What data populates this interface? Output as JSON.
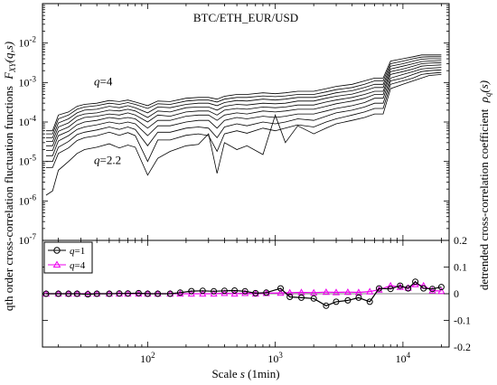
{
  "chart_data": [
    {
      "type": "line",
      "title": "BTC/ETH_EUR/USD",
      "xscale": "log",
      "yscale": "log",
      "xlim": [
        15,
        23000
      ],
      "ylim": [
        1e-07,
        0.1
      ],
      "ylabel": "qth order cross-correlation fluctuation functions",
      "ylabel_math": {
        "main": "F",
        "sub": "XY",
        "args": "(q,s)"
      },
      "y_ticks": [
        {
          "value": 1e-07,
          "base": "10",
          "exp": "-7"
        },
        {
          "value": 1e-06,
          "base": "10",
          "exp": "-6"
        },
        {
          "value": 1e-05,
          "base": "10",
          "exp": "-5"
        },
        {
          "value": 0.0001,
          "base": "10",
          "exp": "-4"
        },
        {
          "value": 0.001,
          "base": "10",
          "exp": "-3"
        },
        {
          "value": 0.01,
          "base": "10",
          "exp": "-2"
        }
      ],
      "annotations": [
        {
          "text_q": "q",
          "text_rest": "=4",
          "x": 38,
          "y": 0.00085
        },
        {
          "text_q": "q",
          "text_rest": "=2.2",
          "x": 38,
          "y": 8.5e-06
        }
      ],
      "x": [
        16,
        18,
        20,
        24,
        28,
        32,
        40,
        50,
        60,
        70,
        80,
        100,
        120,
        150,
        200,
        250,
        300,
        350,
        400,
        500,
        600,
        800,
        1000,
        1200,
        1500,
        2000,
        2500,
        3000,
        4000,
        5000,
        6000,
        7000,
        8000,
        10000,
        12000,
        14000,
        16000,
        20000
      ],
      "series": [
        {
          "values": [
            6e-05,
            6e-05,
            0.00015,
            0.00018,
            0.00025,
            0.00028,
            0.0003,
            0.00035,
            0.00033,
            0.00036,
            0.00032,
            0.00026,
            0.00034,
            0.00033,
            0.0004,
            0.00042,
            0.00042,
            0.00038,
            0.00045,
            0.0005,
            0.0005,
            0.00055,
            0.00052,
            0.00055,
            0.0006,
            0.0006,
            0.0007,
            0.0008,
            0.0009,
            0.0011,
            0.0013,
            0.0013,
            0.0035,
            0.004,
            0.0045,
            0.005,
            0.005,
            0.005
          ]
        },
        {
          "values": [
            5e-05,
            5e-05,
            0.00012,
            0.00015,
            0.00021,
            0.00024,
            0.00026,
            0.0003,
            0.00028,
            0.00031,
            0.00028,
            0.00022,
            0.00029,
            0.00028,
            0.00034,
            0.00036,
            0.00036,
            0.00032,
            0.00038,
            0.00042,
            0.00042,
            0.00046,
            0.00044,
            0.00046,
            0.0005,
            0.0005,
            0.00058,
            0.00066,
            0.00075,
            0.0009,
            0.0011,
            0.0011,
            0.003,
            0.0035,
            0.004,
            0.0044,
            0.0045,
            0.0045
          ]
        },
        {
          "values": [
            4e-05,
            4e-05,
            9.5e-05,
            0.00012,
            0.00017,
            0.0002,
            0.00021,
            0.00025,
            0.00023,
            0.00026,
            0.00023,
            0.00017,
            0.00024,
            0.00023,
            0.00028,
            0.0003,
            0.0003,
            0.00026,
            0.00031,
            0.00035,
            0.00034,
            0.00038,
            0.00036,
            0.00038,
            0.00042,
            0.00042,
            0.00048,
            0.00055,
            0.00062,
            0.00075,
            0.0009,
            0.0009,
            0.0026,
            0.003,
            0.0035,
            0.0039,
            0.004,
            0.004
          ]
        },
        {
          "values": [
            3.2e-05,
            3.2e-05,
            7.5e-05,
            9.5e-05,
            0.00014,
            0.00016,
            0.00017,
            0.0002,
            0.00019,
            0.00021,
            0.00019,
            0.00013,
            0.00019,
            0.00018,
            0.00023,
            0.00024,
            0.00024,
            0.0002,
            0.00025,
            0.00028,
            0.00027,
            0.0003,
            0.00029,
            0.0003,
            0.00034,
            0.00034,
            0.0004,
            0.00045,
            0.00051,
            0.00062,
            0.00075,
            0.00075,
            0.0022,
            0.0026,
            0.003,
            0.0034,
            0.0035,
            0.0036
          ]
        },
        {
          "values": [
            2.5e-05,
            2.5e-05,
            5.8e-05,
            7.5e-05,
            0.00011,
            0.00013,
            0.00014,
            0.00016,
            0.00015,
            0.00017,
            0.00015,
            0.0001,
            0.00015,
            0.00014,
            0.00018,
            0.00019,
            0.00019,
            0.00015,
            0.0002,
            0.00022,
            0.00021,
            0.00024,
            0.00023,
            0.00024,
            0.00027,
            0.00027,
            0.00032,
            0.00036,
            0.00042,
            0.0005,
            0.0006,
            0.0006,
            0.0019,
            0.0022,
            0.0026,
            0.003,
            0.0031,
            0.0032
          ]
        },
        {
          "values": [
            1.9e-05,
            1.9e-05,
            4.5e-05,
            5.8e-05,
            8.5e-05,
            0.0001,
            0.00011,
            0.00013,
            0.00012,
            0.00013,
            0.00012,
            7e-05,
            0.00011,
            0.00011,
            0.00014,
            0.00015,
            0.00015,
            0.00011,
            0.00015,
            0.00017,
            0.00016,
            0.00019,
            0.00018,
            0.00019,
            0.00021,
            0.00021,
            0.00025,
            0.00029,
            0.00034,
            0.0004,
            0.0005,
            0.0005,
            0.0016,
            0.0019,
            0.0022,
            0.0026,
            0.0027,
            0.0028
          ]
        },
        {
          "values": [
            1.4e-05,
            1.4e-05,
            3.3e-05,
            4.5e-05,
            6.5e-05,
            7.5e-05,
            8.5e-05,
            0.0001,
            9e-05,
            0.0001,
            9e-05,
            4.5e-05,
            8e-05,
            8e-05,
            0.0001,
            0.00011,
            0.00011,
            7e-05,
            0.00011,
            0.00013,
            0.00012,
            0.00014,
            0.00013,
            0.00014,
            0.00016,
            0.00016,
            0.00019,
            0.00022,
            0.00026,
            0.00031,
            0.0004,
            0.0004,
            0.0013,
            0.0016,
            0.0019,
            0.0022,
            0.0023,
            0.0024
          ]
        },
        {
          "values": [
            1e-05,
            1e-05,
            2.3e-05,
            3.2e-05,
            4.8e-05,
            5.5e-05,
            6.3e-05,
            7.5e-05,
            6.5e-05,
            7.5e-05,
            6.5e-05,
            2.5e-05,
            5.5e-05,
            5.5e-05,
            7e-05,
            7.5e-05,
            7e-05,
            4e-05,
            7.5e-05,
            9e-05,
            8e-05,
            0.0001,
            9e-05,
            0.0001,
            0.00012,
            0.00011,
            0.00014,
            0.00017,
            0.0002,
            0.00024,
            0.0003,
            0.0003,
            0.0011,
            0.0013,
            0.0016,
            0.0019,
            0.002,
            0.0021
          ]
        },
        {
          "values": [
            7e-06,
            7e-06,
            1.6e-05,
            2.2e-05,
            3.4e-05,
            4e-05,
            4.5e-05,
            5.5e-05,
            4.6e-05,
            5.4e-05,
            4.5e-05,
            1e-05,
            3.5e-05,
            3.5e-05,
            4.6e-05,
            5e-05,
            4.5e-05,
            1.8e-05,
            5e-05,
            6e-05,
            5.2e-05,
            7e-05,
            6e-05,
            7e-05,
            8.5e-05,
            7.5e-05,
            0.0001,
            0.00012,
            0.00015,
            0.00018,
            0.00022,
            0.00022,
            0.0009,
            0.0011,
            0.0013,
            0.0016,
            0.0017,
            0.0018
          ]
        },
        {
          "values": [
            1.4e-06,
            1.8e-06,
            6e-06,
            1e-05,
            1.6e-05,
            2e-05,
            2.3e-05,
            2.8e-05,
            2.2e-05,
            2.6e-05,
            2.3e-05,
            4.5e-06,
            1.2e-05,
            1.8e-05,
            2.5e-05,
            2.7e-05,
            5e-05,
            5e-06,
            3e-05,
            2e-05,
            2.5e-05,
            1.5e-05,
            0.00015,
            3e-05,
            8e-05,
            5e-05,
            7e-05,
            9e-05,
            0.00011,
            0.00013,
            0.00016,
            0.00016,
            0.0007,
            0.0009,
            0.0011,
            0.0013,
            0.0015,
            0.0016
          ]
        }
      ]
    },
    {
      "type": "line",
      "xscale": "log",
      "xlim": [
        15,
        23000
      ],
      "ylim": [
        -0.2,
        0.2
      ],
      "xlabel_prefix": "Scale",
      "xlabel_var": "s",
      "xlabel_unit": "(1min)",
      "x_ticks": [
        {
          "value": 100,
          "base": "10",
          "exp": "2"
        },
        {
          "value": 1000,
          "base": "10",
          "exp": "3"
        },
        {
          "value": 10000,
          "base": "10",
          "exp": "4"
        }
      ],
      "y_ticks": [
        "-0.2",
        "-0.1",
        "0",
        "0.1",
        "0.2"
      ],
      "ylabel_prefix": "detrended cross-correlation coefficient",
      "ylabel_math": {
        "main": "ρ",
        "sub": "q",
        "args": "(s)"
      },
      "legend_position": "top-left",
      "series": [
        {
          "name": "q=1",
          "legend_q": "q",
          "legend_rest": "=1",
          "color": "#000000",
          "marker": "circle",
          "x": [
            16,
            20,
            24,
            28,
            34,
            40,
            50,
            60,
            70,
            85,
            100,
            120,
            150,
            180,
            220,
            270,
            330,
            400,
            480,
            580,
            700,
            850,
            1100,
            1300,
            1600,
            2000,
            2500,
            3000,
            3700,
            4500,
            5500,
            6500,
            8000,
            9500,
            11000,
            12500,
            14500,
            17000,
            20000
          ],
          "values": [
            0,
            0,
            0,
            0,
            -0.002,
            0,
            0,
            0.001,
            0.001,
            0.002,
            0,
            0,
            0,
            0.004,
            0.01,
            0.011,
            0.009,
            0.011,
            0.012,
            0.009,
            0.002,
            0.004,
            0.02,
            -0.012,
            -0.015,
            -0.018,
            -0.045,
            -0.03,
            -0.025,
            -0.015,
            -0.03,
            0.02,
            0.018,
            0.03,
            0.02,
            0.045,
            0.02,
            0.018,
            0.025
          ]
        },
        {
          "name": "q=4",
          "legend_q": "q",
          "legend_rest": "=4",
          "color": "#ee00ee",
          "marker": "triangle",
          "x": [
            16,
            20,
            24,
            28,
            34,
            40,
            50,
            60,
            70,
            85,
            100,
            120,
            150,
            180,
            220,
            270,
            330,
            400,
            480,
            580,
            700,
            850,
            1100,
            1300,
            1600,
            2000,
            2500,
            3000,
            3700,
            4500,
            5500,
            6500,
            8000,
            9500,
            11000,
            12500,
            14500,
            17000,
            20000
          ],
          "values": [
            0,
            0,
            0,
            0,
            0,
            0,
            0,
            0,
            0,
            0,
            0,
            0,
            0,
            0,
            0,
            0,
            0,
            0.002,
            0,
            0.002,
            0,
            0.002,
            0.003,
            0.004,
            0.005,
            0.004,
            0.006,
            0.005,
            0.006,
            0.005,
            0.008,
            0.015,
            0.03,
            0.025,
            0.022,
            0.035,
            0.03,
            0.012,
            0.01
          ]
        }
      ]
    }
  ]
}
